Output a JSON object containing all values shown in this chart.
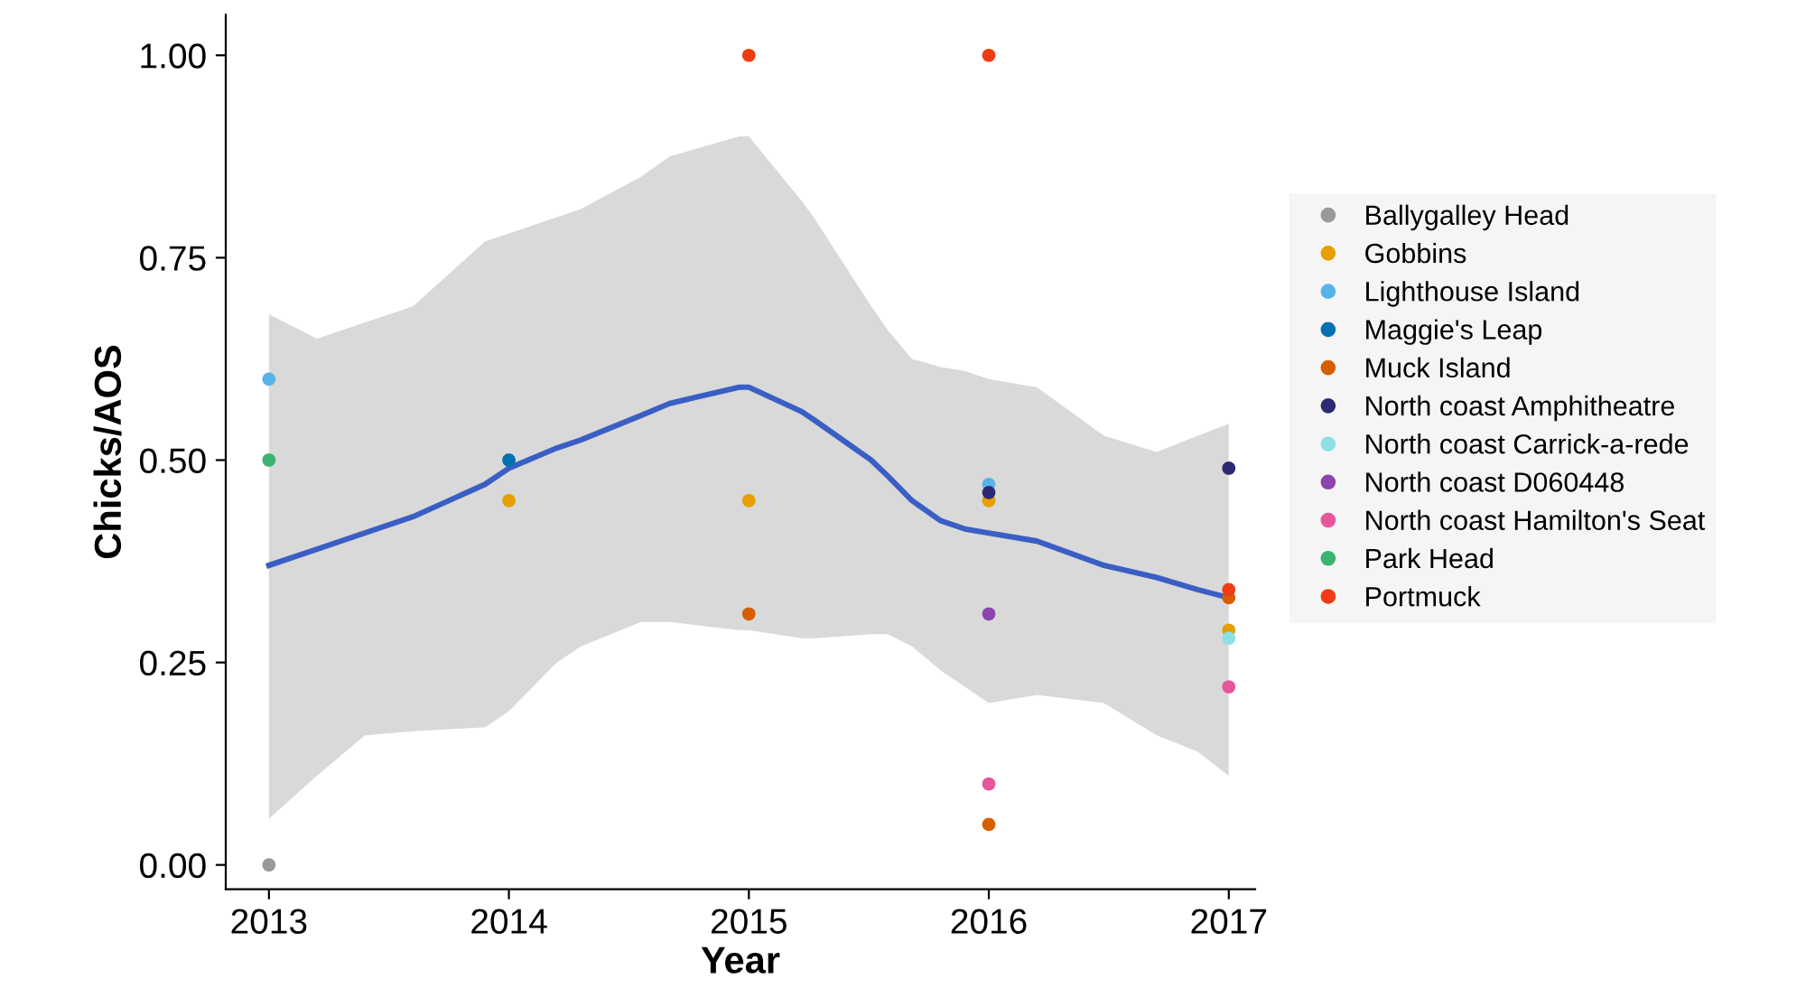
{
  "chart_data": {
    "type": "scatter",
    "xlabel": "Year",
    "ylabel": "Chicks/AOS",
    "xlim": [
      2012.82,
      2017.11
    ],
    "xticks": [
      2013,
      2014,
      2015,
      2016,
      2017
    ],
    "ylim": [
      -0.03,
      1.05
    ],
    "yticks": [
      {
        "value": 0,
        "label": "0.00"
      },
      {
        "value": 0.25,
        "label": "0.25"
      },
      {
        "value": 0.5,
        "label": "0.50"
      },
      {
        "value": 0.75,
        "label": "0.75"
      },
      {
        "value": 1,
        "label": "1.00"
      }
    ],
    "grid": false,
    "legend": "right",
    "marker": "circle",
    "series": [
      {
        "name": "Ballygalley Head",
        "color": "#999999",
        "x": [
          2013
        ],
        "values": [
          0.0
        ]
      },
      {
        "name": "Gobbins",
        "color": "#e69f00",
        "x": [
          2014,
          2015,
          2016,
          2017
        ],
        "values": [
          0.45,
          0.45,
          0.45,
          0.29
        ]
      },
      {
        "name": "Lighthouse Island",
        "color": "#56b4e9",
        "x": [
          2013,
          2016
        ],
        "values": [
          0.6,
          0.47
        ]
      },
      {
        "name": "Maggie's Leap",
        "color": "#0072b2",
        "x": [
          2014
        ],
        "values": [
          0.5
        ]
      },
      {
        "name": "Muck Island",
        "color": "#d55e00",
        "x": [
          2015,
          2016,
          2017
        ],
        "values": [
          0.31,
          0.05,
          0.33
        ]
      },
      {
        "name": "North coast Amphitheatre",
        "color": "#2b2a73",
        "x": [
          2016,
          2017
        ],
        "values": [
          0.46,
          0.49
        ]
      },
      {
        "name": "North coast Carrick-a-rede",
        "color": "#8ee0e6",
        "x": [
          2017
        ],
        "values": [
          0.28
        ]
      },
      {
        "name": "North coast D060448",
        "color": "#8e44ad",
        "x": [
          2016
        ],
        "values": [
          0.31
        ]
      },
      {
        "name": "North coast Hamilton's Seat",
        "color": "#e7569b",
        "x": [
          2016,
          2017
        ],
        "values": [
          0.1,
          0.22
        ]
      },
      {
        "name": "Park Head",
        "color": "#3cb371",
        "x": [
          2013
        ],
        "values": [
          0.5
        ]
      },
      {
        "name": "Portmuck",
        "color": "#f03c14",
        "x": [
          2015,
          2016,
          2017
        ],
        "values": [
          1.0,
          1.0,
          0.34
        ]
      },
      {
        "type": "line",
        "color": "#3a5fc4",
        "marker": "none",
        "values": [
          0.37,
          0.39,
          0.41,
          0.43,
          0.47,
          0.49,
          0.515,
          0.525,
          0.555,
          0.57,
          0.59,
          0.59,
          0.56,
          0.55,
          0.5,
          0.48,
          0.45,
          0.425,
          0.415,
          0.41,
          0.4,
          0.37,
          0.355,
          0.34,
          0.33
        ],
        "x": [
          2013,
          2013.2,
          2013.4,
          2013.6,
          2013.9,
          2014,
          2014.2,
          2014.3,
          2014.55,
          2014.67,
          2014.96,
          2015,
          2015.22,
          2015.27,
          2015.51,
          2015.58,
          2015.68,
          2015.8,
          2015.9,
          2016,
          2016.2,
          2016.48,
          2016.7,
          2016.87,
          2017
        ],
        "lower": [
          0.057,
          0.11,
          0.16,
          0.165,
          0.17,
          0.19,
          0.25,
          0.27,
          0.3,
          0.3,
          0.29,
          0.29,
          0.28,
          0.28,
          0.285,
          0.285,
          0.27,
          0.24,
          0.22,
          0.2,
          0.21,
          0.2,
          0.16,
          0.14,
          0.11
        ],
        "upper": [
          0.68,
          0.65,
          0.67,
          0.69,
          0.77,
          0.78,
          0.8,
          0.81,
          0.85,
          0.875,
          0.9,
          0.9,
          0.82,
          0.8,
          0.69,
          0.66,
          0.625,
          0.615,
          0.61,
          0.6,
          0.59,
          0.53,
          0.51,
          0.53,
          0.545
        ]
      }
    ]
  }
}
